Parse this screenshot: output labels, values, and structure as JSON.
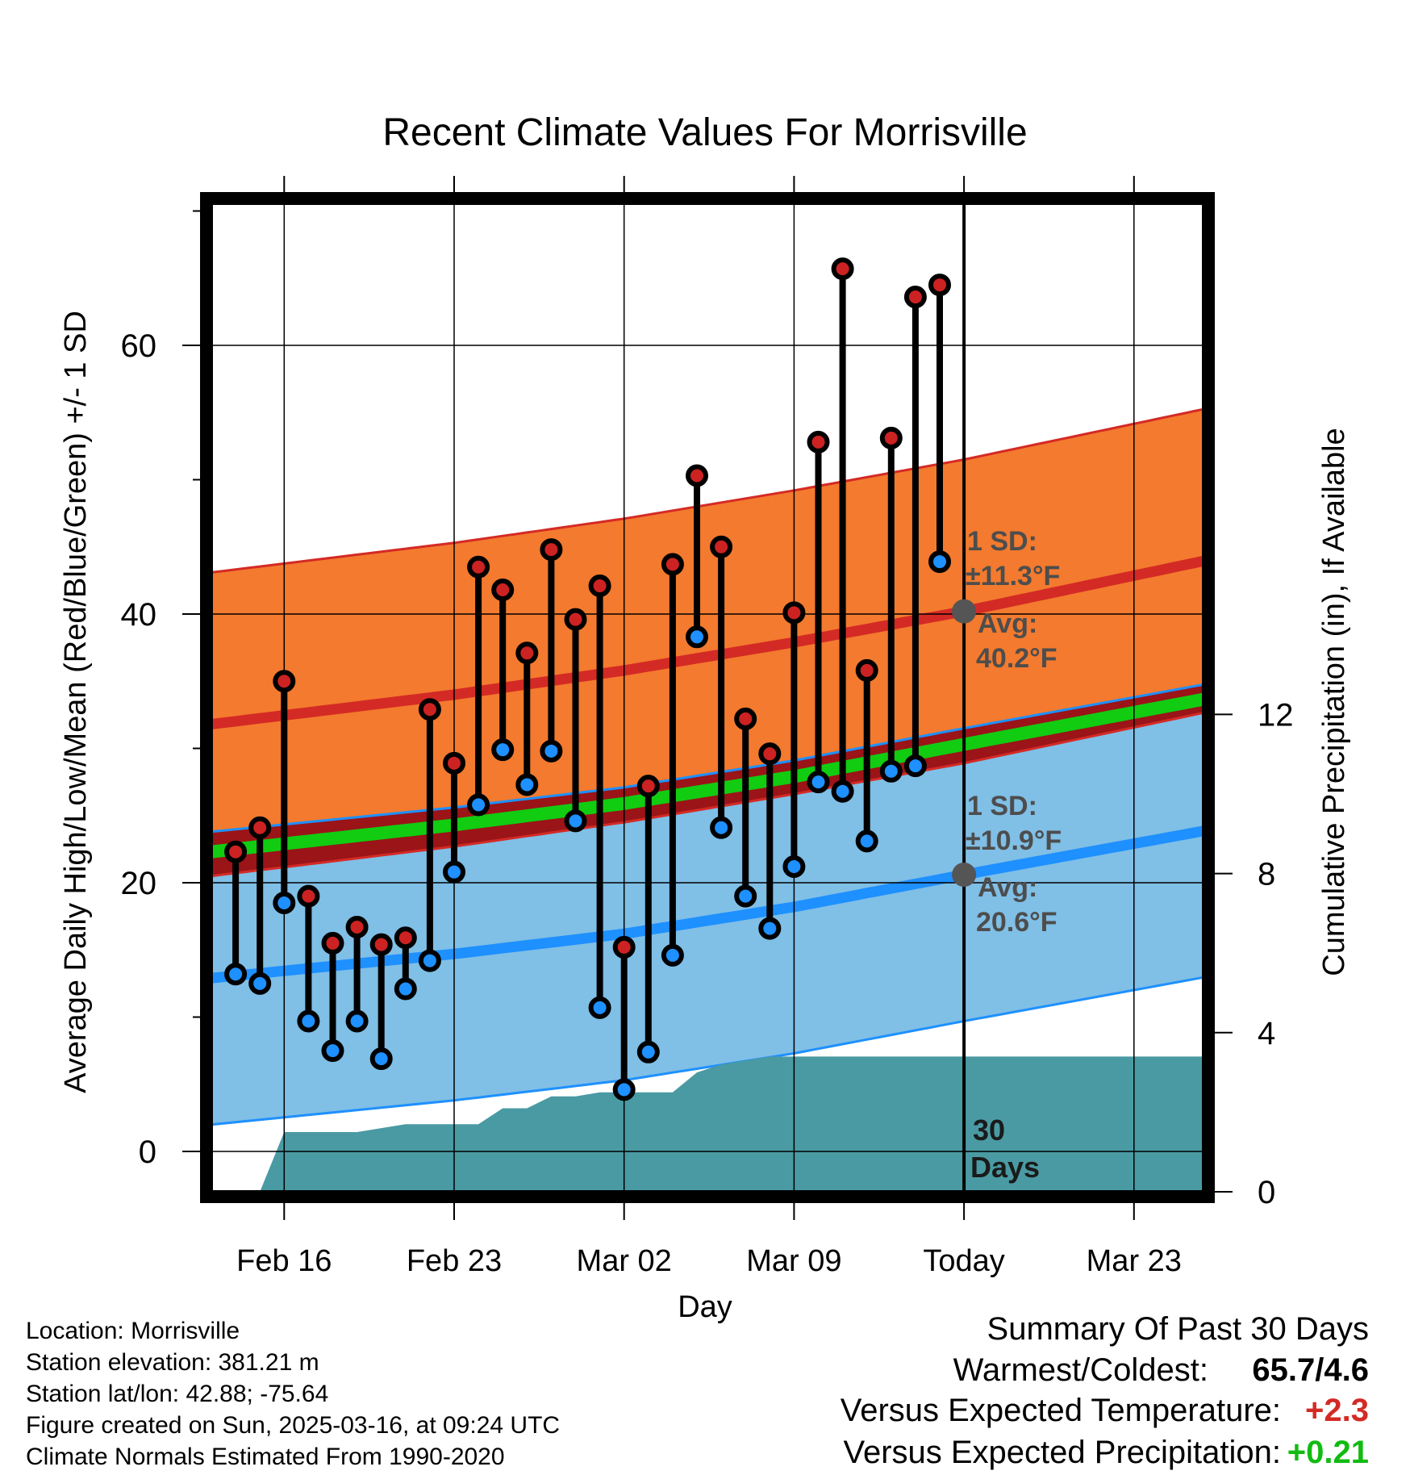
{
  "chart_data": {
    "type": "line",
    "title": "Recent Climate Values For Morrisville",
    "xlabel": "Day",
    "ylabel": "Average Daily High/Low/Mean (Red/Blue/Green) +/- 1 SD",
    "ylabel_right": "Cumulative Precipitation (in), If Available",
    "ylim": [
      -3,
      71
    ],
    "ylim_right": [
      0,
      32
    ],
    "x_tick_labels": [
      "Feb 16",
      "Feb 23",
      "Mar 02",
      "Mar 09",
      "Today",
      "Mar 23"
    ],
    "y_tick_labels": [
      "0",
      "20",
      "40",
      "60"
    ],
    "y_right_tick_labels": [
      "0",
      "4",
      "8",
      "12"
    ],
    "x_range": [
      "2025-02-13",
      "2025-03-26"
    ],
    "today": "2025-03-16",
    "observed_days": [
      "2025-02-14",
      "2025-02-15",
      "2025-02-16",
      "2025-02-17",
      "2025-02-18",
      "2025-02-19",
      "2025-02-20",
      "2025-02-21",
      "2025-02-22",
      "2025-02-23",
      "2025-02-24",
      "2025-02-25",
      "2025-02-26",
      "2025-02-27",
      "2025-02-28",
      "2025-03-01",
      "2025-03-02",
      "2025-03-03",
      "2025-03-04",
      "2025-03-05",
      "2025-03-06",
      "2025-03-07",
      "2025-03-08",
      "2025-03-09",
      "2025-03-10",
      "2025-03-11",
      "2025-03-12",
      "2025-03-13",
      "2025-03-14",
      "2025-03-15"
    ],
    "series": [
      {
        "name": "High",
        "color": "#cc2222",
        "values": [
          22.3,
          24.1,
          35.0,
          19.0,
          15.5,
          16.7,
          15.4,
          15.9,
          32.9,
          28.9,
          43.5,
          41.8,
          37.1,
          44.8,
          39.6,
          42.1,
          15.2,
          27.2,
          43.7,
          50.3,
          45.0,
          32.2,
          29.6,
          40.1,
          52.8,
          65.7,
          35.8,
          53.1,
          63.6,
          64.5
        ]
      },
      {
        "name": "Low",
        "color": "#1e90ff",
        "values": [
          13.2,
          12.5,
          18.5,
          9.7,
          7.5,
          9.7,
          6.9,
          12.1,
          14.2,
          20.8,
          25.8,
          29.9,
          27.3,
          29.8,
          24.6,
          10.7,
          4.6,
          7.4,
          14.6,
          38.3,
          24.1,
          19.0,
          16.6,
          21.2,
          27.5,
          26.8,
          23.1,
          28.3,
          28.7,
          43.9
        ]
      }
    ],
    "normals": {
      "x": [
        "2025-02-13",
        "2025-02-23",
        "2025-03-02",
        "2025-03-09",
        "2025-03-16",
        "2025-03-26"
      ],
      "high_avg": [
        31.8,
        34.0,
        35.8,
        37.9,
        40.2,
        44.0
      ],
      "high_sd": 11.3,
      "low_avg": [
        12.9,
        14.7,
        16.2,
        18.2,
        20.6,
        23.9
      ],
      "low_sd": 10.9,
      "mean_avg": [
        22.3,
        24.3,
        25.9,
        27.9,
        30.3,
        33.7
      ]
    },
    "precipitation": {
      "x": [
        "2025-02-14",
        "2025-02-15",
        "2025-02-16",
        "2025-02-19",
        "2025-02-20",
        "2025-02-21",
        "2025-02-22",
        "2025-02-23",
        "2025-02-24",
        "2025-02-25",
        "2025-02-26",
        "2025-02-27",
        "2025-02-28",
        "2025-03-01",
        "2025-03-02",
        "2025-03-03",
        "2025-03-04",
        "2025-03-05",
        "2025-03-06",
        "2025-03-07",
        "2025-03-08",
        "2025-03-16",
        "2025-03-26"
      ],
      "cumulative": [
        0.0,
        0.0,
        1.5,
        1.5,
        1.6,
        1.7,
        1.7,
        1.7,
        1.7,
        2.1,
        2.1,
        2.4,
        2.4,
        2.5,
        2.5,
        2.5,
        2.5,
        3.0,
        3.2,
        3.3,
        3.4,
        3.4,
        3.4
      ]
    },
    "annotations": {
      "high_sd_label": "1 SD:",
      "high_sd_value": "±11.3°F",
      "high_avg_label": "Avg:",
      "high_avg_value": "40.2°F",
      "low_sd_label": "1 SD:",
      "low_sd_value": "±10.9°F",
      "low_avg_label": "Avg:",
      "low_avg_value": "20.6°F",
      "days_number": "30",
      "days_word": "Days"
    },
    "colors": {
      "high_band": "#f37a2e",
      "high_line": "#d42a25",
      "low_band": "#80bfe6",
      "low_line": "#1e90ff",
      "overlap": "#9a1418",
      "mean": "#11cc11",
      "precip": "#4a9aa3",
      "high_dot": "#cc2222",
      "low_dot": "#1e90ff"
    },
    "grid": true
  },
  "footer": {
    "location": "Location: Morrisville",
    "elevation": "Station elevation: 381.21 m",
    "latlon": "Station lat/lon: 42.88; -75.64",
    "created": "Figure created on Sun, 2025-03-16, at 09:24 UTC",
    "normals": "Climate Normals Estimated From 1990-2020"
  },
  "summary": {
    "title": "Summary Of Past 30 Days",
    "warm_cold_label": "Warmest/Coldest:",
    "warm_cold_value": "65.7/4.6",
    "temp_label": "Versus Expected Temperature:",
    "temp_value": "+2.3",
    "temp_color": "#d42a25",
    "precip_label": "Versus Expected Precipitation:",
    "precip_value": "+0.21",
    "precip_color": "#11bb11"
  }
}
